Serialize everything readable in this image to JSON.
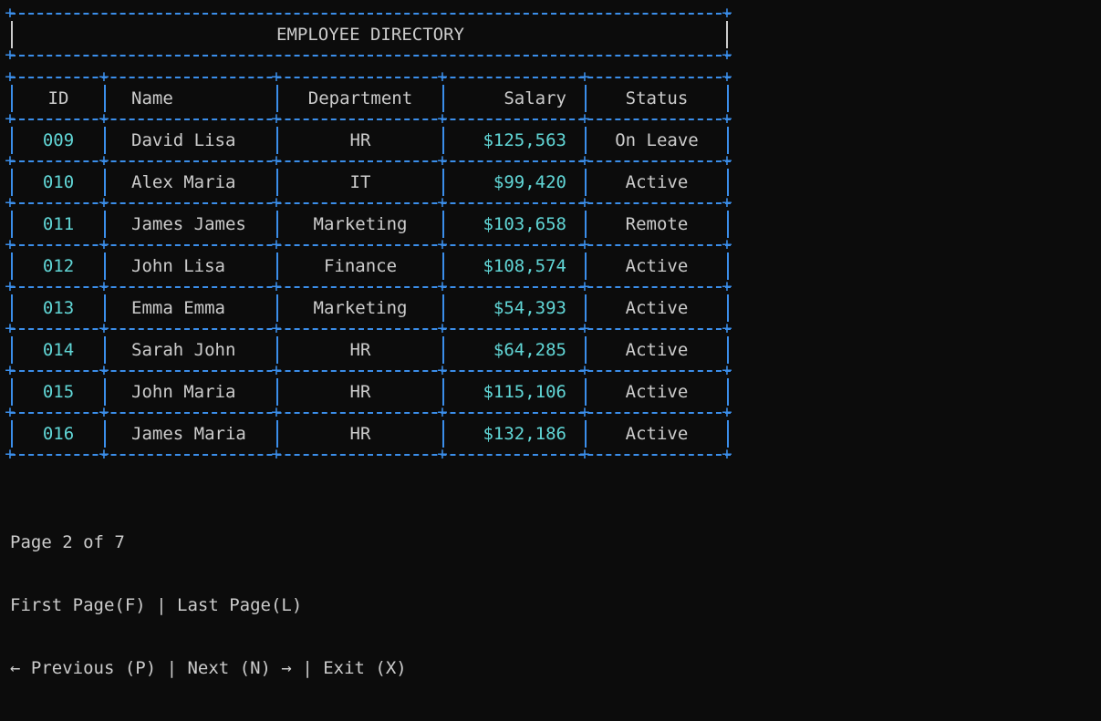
{
  "title": "EMPLOYEE DIRECTORY",
  "columns": [
    "ID",
    "Name",
    "Department",
    "Salary",
    "Status"
  ],
  "rows": [
    {
      "id": "009",
      "name": "David Lisa",
      "department": "HR",
      "salary": "$125,563",
      "status": "On Leave"
    },
    {
      "id": "010",
      "name": "Alex Maria",
      "department": "IT",
      "salary": "$99,420",
      "status": "Active"
    },
    {
      "id": "011",
      "name": "James James",
      "department": "Marketing",
      "salary": "$103,658",
      "status": "Remote"
    },
    {
      "id": "012",
      "name": "John Lisa",
      "department": "Finance",
      "salary": "$108,574",
      "status": "Active"
    },
    {
      "id": "013",
      "name": "Emma Emma",
      "department": "Marketing",
      "salary": "$54,393",
      "status": "Active"
    },
    {
      "id": "014",
      "name": "Sarah John",
      "department": "HR",
      "salary": "$64,285",
      "status": "Active"
    },
    {
      "id": "015",
      "name": "John Maria",
      "department": "HR",
      "salary": "$115,106",
      "status": "Active"
    },
    {
      "id": "016",
      "name": "James Maria",
      "department": "HR",
      "salary": "$132,186",
      "status": "Active"
    }
  ],
  "footer": {
    "page_info": "Page 2 of 7",
    "first_page": "First Page(F)",
    "separator": " | ",
    "last_page": "Last Page(L)",
    "previous": "← Previous (P)",
    "next": "Next (N) →",
    "exit": "Exit (X)"
  },
  "colors": {
    "background": "#0c0c0c",
    "border": "#3b8eea",
    "text": "#cccccc",
    "accent": "#61d6d6"
  }
}
